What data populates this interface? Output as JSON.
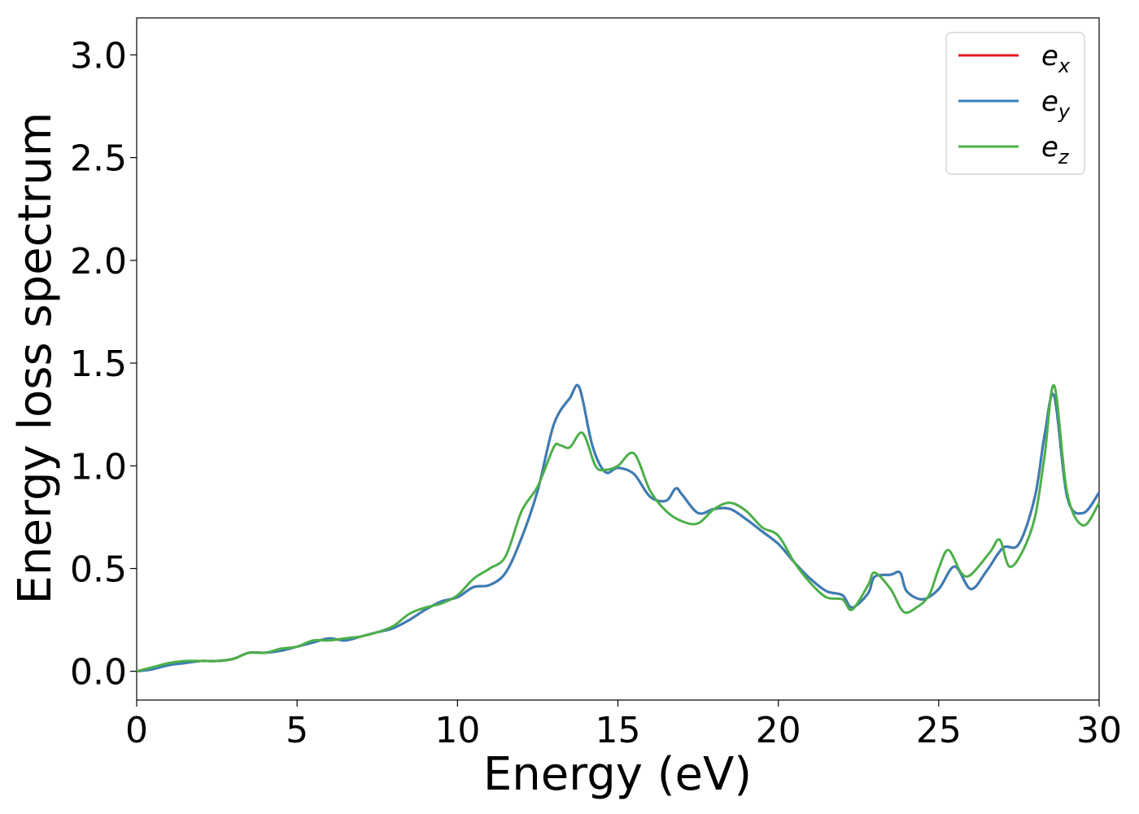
{
  "chart_data": {
    "type": "line",
    "title": "",
    "xlabel": "Energy (eV)",
    "ylabel": "Energy loss spectrum",
    "xlim": [
      0,
      30
    ],
    "ylim": [
      -0.14,
      3.18
    ],
    "xticks": [
      0,
      5,
      10,
      15,
      20,
      25,
      30
    ],
    "yticks": [
      0.0,
      0.5,
      1.0,
      1.5,
      2.0,
      2.5,
      3.0
    ],
    "xtick_labels": [
      "0",
      "5",
      "10",
      "15",
      "20",
      "25",
      "30"
    ],
    "ytick_labels": [
      "0.0",
      "0.5",
      "1.0",
      "1.5",
      "2.0",
      "2.5",
      "3.0"
    ],
    "grid": false,
    "legend_position": "top-right",
    "series": [
      {
        "name": "e_x",
        "legend_base": "e",
        "legend_sub": "x",
        "color": "#e41a1c",
        "x": [
          0,
          0.5,
          1,
          1.5,
          2,
          2.5,
          3,
          3.5,
          4,
          4.5,
          5,
          5.5,
          6,
          6.5,
          7,
          7.5,
          8,
          8.5,
          9,
          9.5,
          10,
          10.5,
          11,
          11.5,
          12,
          12.5,
          13,
          13.5,
          13.8,
          14.2,
          14.6,
          15,
          15.5,
          16,
          16.5,
          16.8,
          17,
          17.5,
          18,
          18.5,
          19,
          19.5,
          20,
          20.5,
          21,
          21.5,
          22,
          22.3,
          22.8,
          23,
          23.5,
          23.8,
          24,
          24.5,
          25,
          25.5,
          26,
          26.5,
          27,
          27.5,
          28,
          28.3,
          28.6,
          29,
          29.5,
          30
        ],
        "y": [
          0.0,
          0.01,
          0.03,
          0.04,
          0.05,
          0.05,
          0.06,
          0.09,
          0.09,
          0.1,
          0.12,
          0.14,
          0.16,
          0.15,
          0.17,
          0.19,
          0.21,
          0.25,
          0.3,
          0.34,
          0.36,
          0.41,
          0.42,
          0.48,
          0.65,
          0.88,
          1.2,
          1.33,
          1.38,
          1.1,
          0.97,
          0.99,
          0.96,
          0.85,
          0.83,
          0.89,
          0.86,
          0.77,
          0.79,
          0.79,
          0.74,
          0.68,
          0.62,
          0.53,
          0.45,
          0.39,
          0.37,
          0.31,
          0.38,
          0.46,
          0.47,
          0.48,
          0.39,
          0.35,
          0.4,
          0.51,
          0.4,
          0.49,
          0.6,
          0.62,
          0.85,
          1.15,
          1.34,
          0.85,
          0.77,
          0.87
        ]
      },
      {
        "name": "e_y",
        "legend_base": "e",
        "legend_sub": "y",
        "color": "#377eb8",
        "x": [
          0,
          0.5,
          1,
          1.5,
          2,
          2.5,
          3,
          3.5,
          4,
          4.5,
          5,
          5.5,
          6,
          6.5,
          7,
          7.5,
          8,
          8.5,
          9,
          9.5,
          10,
          10.5,
          11,
          11.5,
          12,
          12.5,
          13,
          13.5,
          13.8,
          14.2,
          14.6,
          15,
          15.5,
          16,
          16.5,
          16.8,
          17,
          17.5,
          18,
          18.5,
          19,
          19.5,
          20,
          20.5,
          21,
          21.5,
          22,
          22.3,
          22.8,
          23,
          23.5,
          23.8,
          24,
          24.5,
          25,
          25.5,
          26,
          26.5,
          27,
          27.5,
          28,
          28.3,
          28.6,
          29,
          29.5,
          30
        ],
        "y": [
          0.0,
          0.01,
          0.03,
          0.04,
          0.05,
          0.05,
          0.06,
          0.09,
          0.09,
          0.1,
          0.12,
          0.14,
          0.16,
          0.15,
          0.17,
          0.19,
          0.21,
          0.25,
          0.3,
          0.34,
          0.36,
          0.41,
          0.42,
          0.48,
          0.65,
          0.88,
          1.2,
          1.33,
          1.38,
          1.1,
          0.97,
          0.99,
          0.96,
          0.85,
          0.83,
          0.89,
          0.86,
          0.77,
          0.79,
          0.79,
          0.74,
          0.68,
          0.62,
          0.53,
          0.45,
          0.39,
          0.37,
          0.31,
          0.38,
          0.46,
          0.47,
          0.48,
          0.39,
          0.35,
          0.4,
          0.51,
          0.4,
          0.49,
          0.6,
          0.62,
          0.85,
          1.15,
          1.34,
          0.85,
          0.77,
          0.87
        ]
      },
      {
        "name": "e_z",
        "legend_base": "e",
        "legend_sub": "z",
        "color": "#4daf4a",
        "x": [
          0,
          0.5,
          1,
          1.5,
          2,
          2.5,
          3,
          3.5,
          4,
          4.5,
          5,
          5.5,
          6,
          6.5,
          7,
          7.5,
          8,
          8.5,
          9,
          9.5,
          10,
          10.5,
          11,
          11.5,
          12,
          12.5,
          13,
          13.2,
          13.5,
          13.9,
          14.3,
          14.6,
          15,
          15.5,
          16,
          16.5,
          17,
          17.5,
          18,
          18.5,
          19,
          19.5,
          20,
          20.5,
          21,
          21.5,
          22,
          22.3,
          22.8,
          23,
          23.5,
          23.9,
          24.3,
          24.7,
          25,
          25.3,
          25.7,
          26,
          26.6,
          26.9,
          27.2,
          27.6,
          28,
          28.3,
          28.6,
          29,
          29.5,
          30
        ],
        "y": [
          0.0,
          0.02,
          0.04,
          0.05,
          0.05,
          0.05,
          0.06,
          0.09,
          0.09,
          0.11,
          0.12,
          0.15,
          0.15,
          0.16,
          0.17,
          0.19,
          0.22,
          0.28,
          0.31,
          0.33,
          0.37,
          0.45,
          0.5,
          0.56,
          0.78,
          0.9,
          1.09,
          1.1,
          1.09,
          1.16,
          1.0,
          0.98,
          1.0,
          1.06,
          0.88,
          0.78,
          0.73,
          0.72,
          0.79,
          0.82,
          0.78,
          0.7,
          0.66,
          0.53,
          0.43,
          0.36,
          0.35,
          0.3,
          0.42,
          0.48,
          0.4,
          0.29,
          0.31,
          0.37,
          0.5,
          0.59,
          0.48,
          0.47,
          0.58,
          0.64,
          0.51,
          0.58,
          0.75,
          1.05,
          1.39,
          0.87,
          0.71,
          0.82
        ]
      }
    ]
  }
}
